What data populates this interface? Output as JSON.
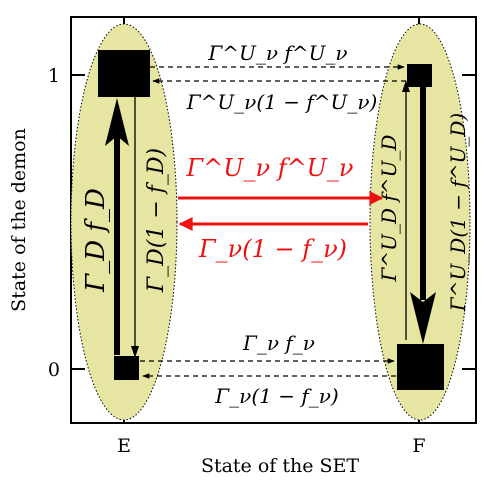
{
  "axes": {
    "x_title": "State of the SET",
    "y_title": "State of the demon",
    "x_ticks": [
      "E",
      "F"
    ],
    "y_ticks": [
      "1",
      "0"
    ]
  },
  "states": [
    {
      "id": "E1",
      "set": "E",
      "demon": "1"
    },
    {
      "id": "E0",
      "set": "E",
      "demon": "0"
    },
    {
      "id": "F1",
      "set": "F",
      "demon": "1"
    },
    {
      "id": "F0",
      "set": "F",
      "demon": "0"
    }
  ],
  "rates": {
    "top_forward": "Γ^U_ν f^U_ν",
    "top_backward": "Γ^U_ν(1 − f^U_ν)",
    "mid_forward": "Γ^U_ν f^U_ν",
    "mid_backward": "Γ_ν(1 − f_ν)",
    "bottom_forward": "Γ_ν f_ν",
    "bottom_backward": "Γ_ν(1 − f_ν)",
    "left_up": "Γ_D f_D",
    "left_down": "Γ_D(1 − f_D)",
    "right_left": "Γ^U_D f^U_D",
    "right_down": "Γ^U_D(1 − f^U_D)"
  },
  "colors": {
    "ellipse_fill": "#e6e6a2",
    "accent_red": "#ee1111",
    "ink": "#000000"
  }
}
